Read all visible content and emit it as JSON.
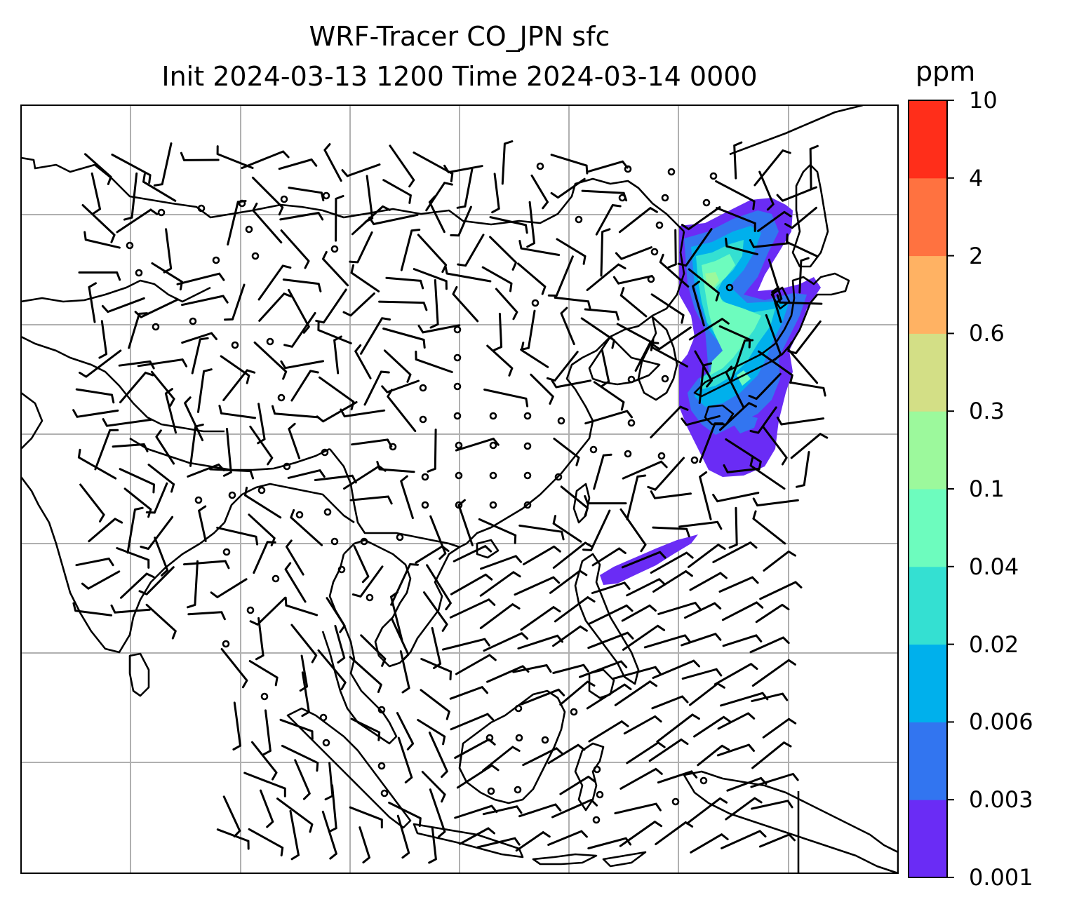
{
  "title": {
    "line1": "WRF-Tracer CO_JPN sfc",
    "line2": "Init 2024-03-13 1200 Time 2024-03-14 0000"
  },
  "colorbar": {
    "unit": "ppm",
    "levels": [
      "0.001",
      "0.003",
      "0.006",
      "0.02",
      "0.04",
      "0.1",
      "0.3",
      "0.6",
      "2",
      "4",
      "10"
    ],
    "colors": [
      "#6a2cf5",
      "#3275f0",
      "#00b0ec",
      "#34e0d2",
      "#6dfcbe",
      "#9cf99c",
      "#d3df86",
      "#ffb263",
      "#ff7240",
      "#ff2e1a"
    ]
  },
  "map": {
    "gridlines": true,
    "features": [
      "coastlines",
      "country borders",
      "wind barbs",
      "CO tracer plume"
    ],
    "plume_colors": [
      "#6a2cf5",
      "#3275f0",
      "#00b0ec",
      "#34e0d2",
      "#6dfcbe"
    ]
  }
}
